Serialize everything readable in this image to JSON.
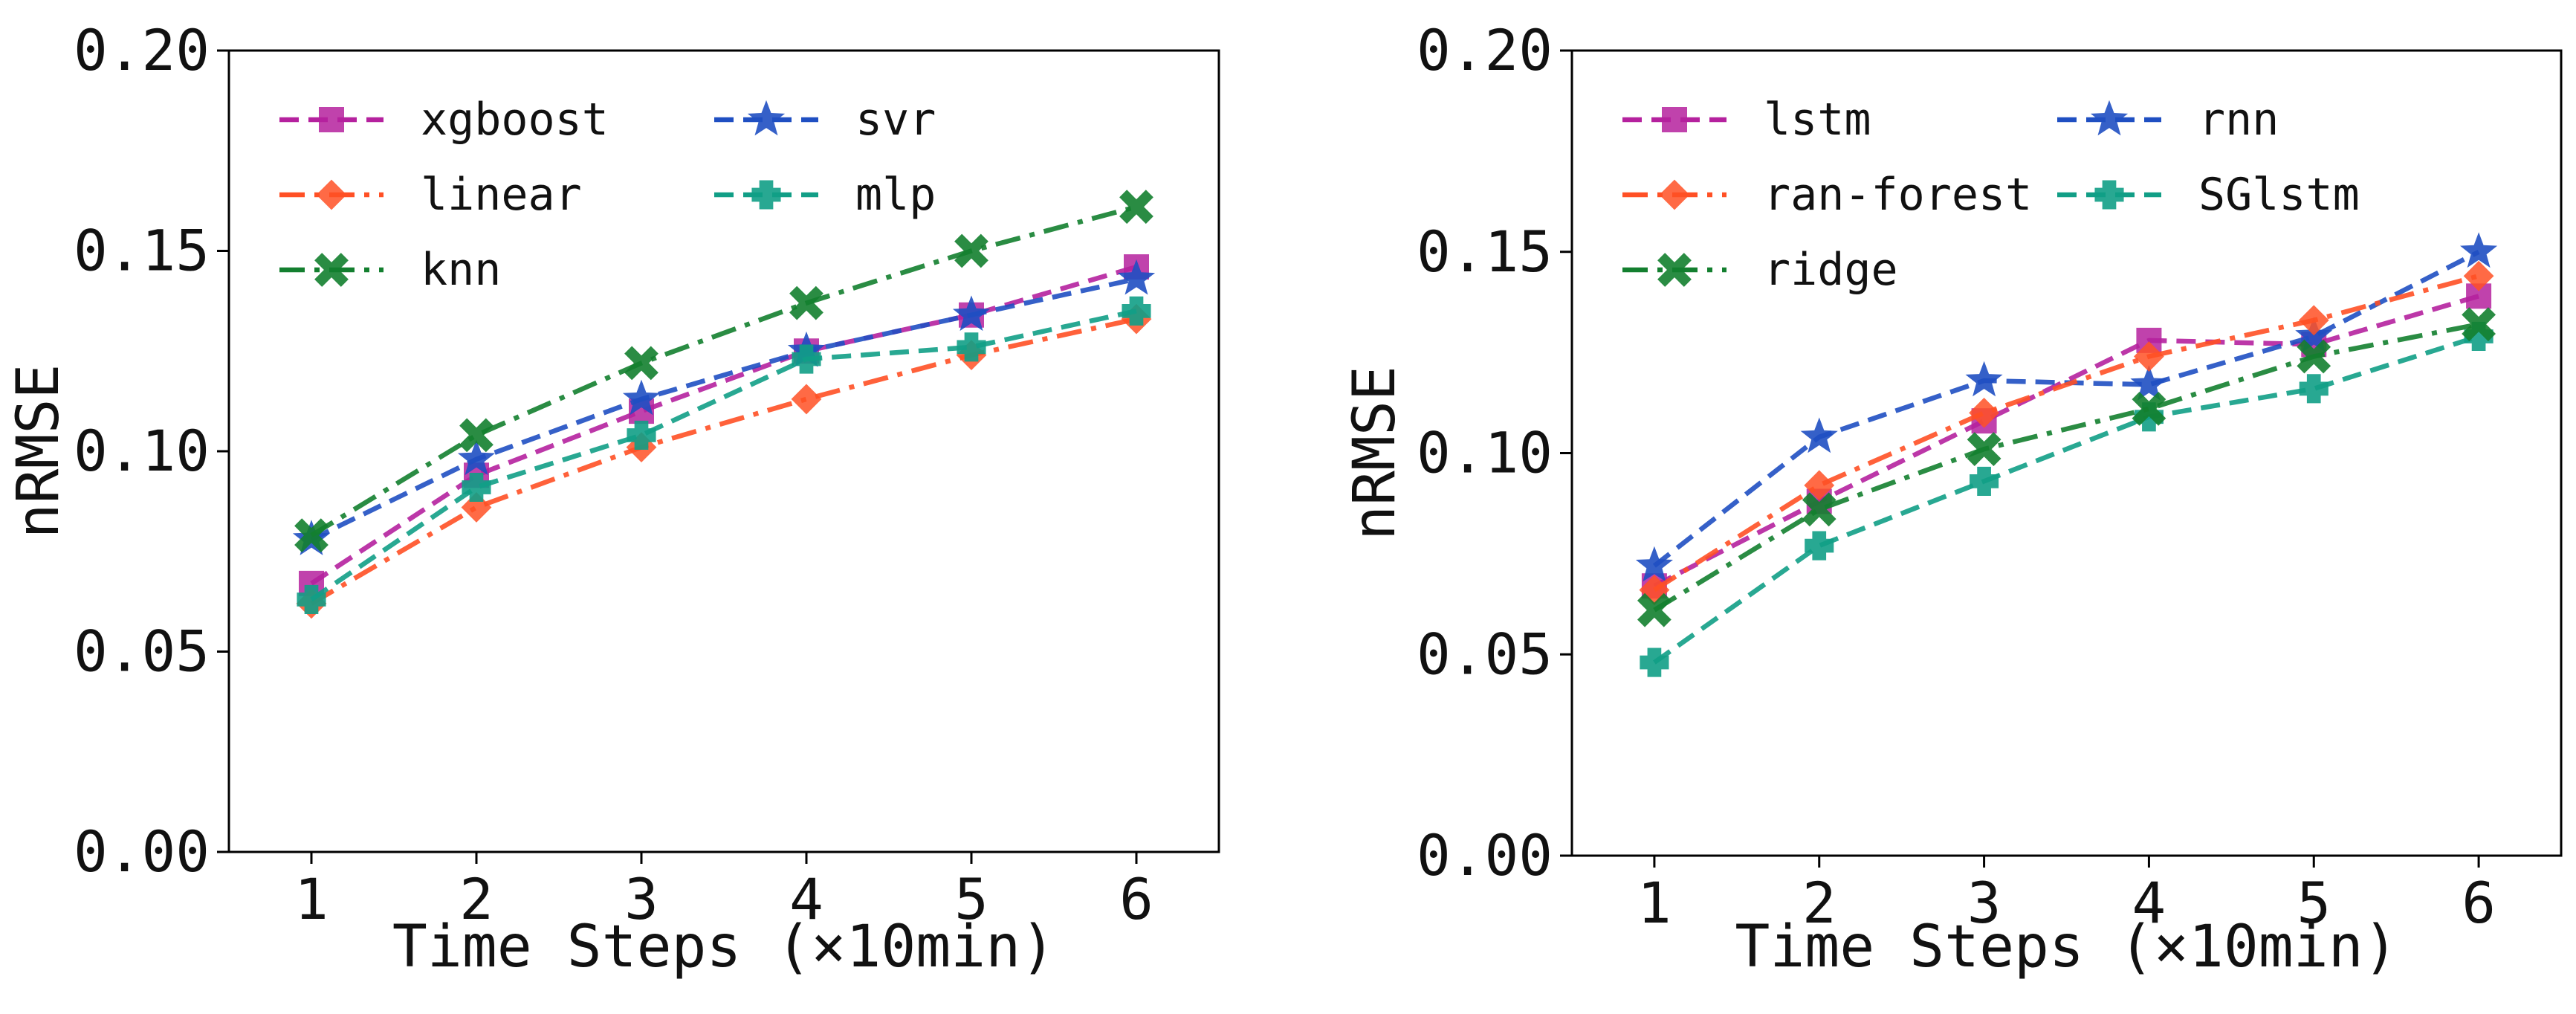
{
  "figure": {
    "panels": 2
  },
  "chart_data": [
    {
      "type": "line",
      "title": "",
      "xlabel": "Time Steps (×10min)",
      "ylabel": "nRMSE",
      "x": [
        1,
        2,
        3,
        4,
        5,
        6
      ],
      "xlim": [
        0.5,
        6.5
      ],
      "ylim": [
        0,
        0.2
      ],
      "yticks": [
        "0.00",
        "0.05",
        "0.10",
        "0.15",
        "0.20"
      ],
      "xticks": [
        "1",
        "2",
        "3",
        "4",
        "5",
        "6"
      ],
      "grid": false,
      "legend_position": "upper-left",
      "legend_columns": 2,
      "series": [
        {
          "name": "xgboost",
          "values": [
            0.067,
            0.094,
            0.11,
            0.125,
            0.134,
            0.146
          ],
          "color": "#b5219e",
          "dash": "dashed",
          "marker": "square"
        },
        {
          "name": "svr",
          "values": [
            0.078,
            0.098,
            0.113,
            0.125,
            0.134,
            0.143
          ],
          "color": "#1f4fc2",
          "dash": "dashed",
          "marker": "star"
        },
        {
          "name": "linear",
          "values": [
            0.062,
            0.086,
            0.101,
            0.113,
            0.124,
            0.133
          ],
          "color": "#ff5025",
          "dash": "dashdot",
          "marker": "diamond"
        },
        {
          "name": "mlp",
          "values": [
            0.063,
            0.091,
            0.104,
            0.123,
            0.126,
            0.135
          ],
          "color": "#119e86",
          "dash": "dashed",
          "marker": "plus"
        },
        {
          "name": "knn",
          "values": [
            0.079,
            0.104,
            0.122,
            0.137,
            0.15,
            0.161
          ],
          "color": "#137f2f",
          "dash": "dashdot",
          "marker": "x"
        }
      ]
    },
    {
      "type": "line",
      "title": "",
      "xlabel": "Time Steps (×10min)",
      "ylabel": "nRMSE",
      "x": [
        1,
        2,
        3,
        4,
        5,
        6
      ],
      "xlim": [
        0.5,
        6.5
      ],
      "ylim": [
        0,
        0.2
      ],
      "yticks": [
        "0.00",
        "0.05",
        "0.10",
        "0.15",
        "0.20"
      ],
      "xticks": [
        "1",
        "2",
        "3",
        "4",
        "5",
        "6"
      ],
      "grid": false,
      "legend_position": "upper-left",
      "legend_columns": 2,
      "series": [
        {
          "name": "lstm",
          "values": [
            0.067,
            0.088,
            0.108,
            0.128,
            0.127,
            0.139
          ],
          "color": "#b5219e",
          "dash": "dashed",
          "marker": "square"
        },
        {
          "name": "rnn",
          "values": [
            0.072,
            0.104,
            0.118,
            0.117,
            0.129,
            0.15
          ],
          "color": "#1f4fc2",
          "dash": "dashed",
          "marker": "star"
        },
        {
          "name": "ran-forest",
          "values": [
            0.066,
            0.092,
            0.11,
            0.124,
            0.133,
            0.144
          ],
          "color": "#ff5025",
          "dash": "dashdot",
          "marker": "diamond"
        },
        {
          "name": "SGlstm",
          "values": [
            0.048,
            0.077,
            0.093,
            0.109,
            0.116,
            0.129
          ],
          "color": "#119e86",
          "dash": "dashed",
          "marker": "plus"
        },
        {
          "name": "ridge",
          "values": [
            0.061,
            0.086,
            0.101,
            0.111,
            0.124,
            0.132
          ],
          "color": "#137f2f",
          "dash": "dashdot",
          "marker": "x"
        }
      ]
    }
  ]
}
